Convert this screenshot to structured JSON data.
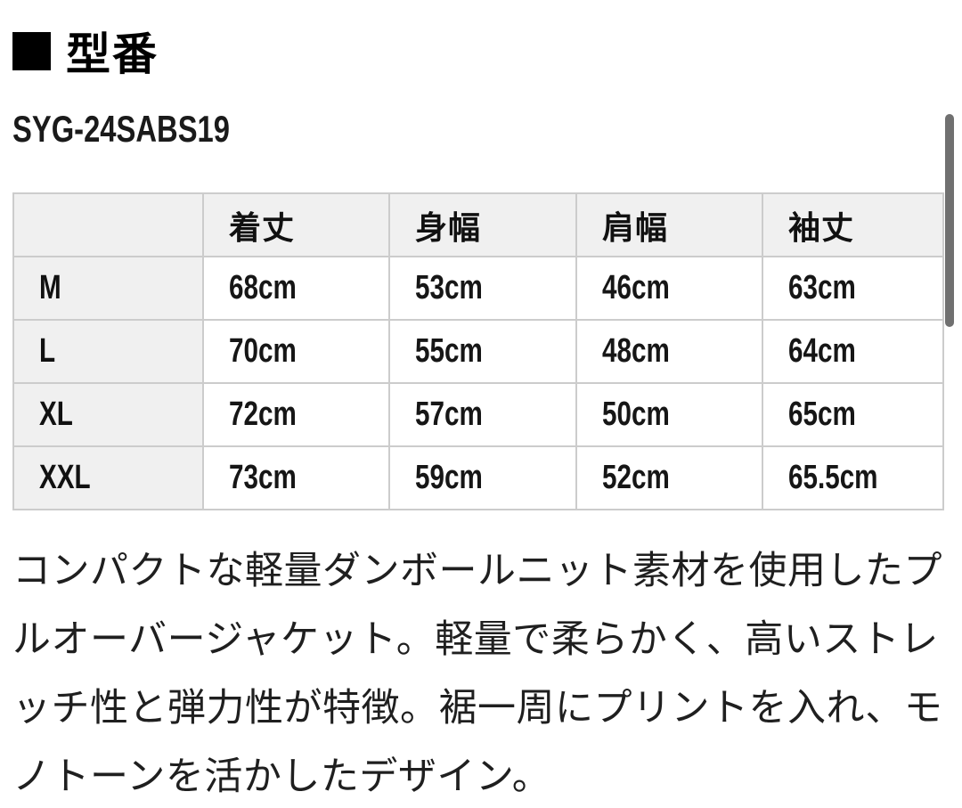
{
  "header": {
    "marker_icon": "black-square",
    "title": "型番"
  },
  "model_number": "SYG-24SABS19",
  "size_table": {
    "columns": [
      "",
      "着丈",
      "身幅",
      "肩幅",
      "袖丈"
    ],
    "rows": [
      {
        "size": "M",
        "values": [
          "68cm",
          "53cm",
          "46cm",
          "63cm"
        ]
      },
      {
        "size": "L",
        "values": [
          "70cm",
          "55cm",
          "48cm",
          "64cm"
        ]
      },
      {
        "size": "XL",
        "values": [
          "72cm",
          "57cm",
          "50cm",
          "65cm"
        ]
      },
      {
        "size": "XXL",
        "values": [
          "73cm",
          "59cm",
          "52cm",
          "65.5cm"
        ]
      }
    ],
    "colors": {
      "header_bg": "#f0f0f0",
      "row_label_bg": "#f0f0f0",
      "border": "#cccccc",
      "cell_bg": "#ffffff"
    }
  },
  "description": "コンパクトな軽量ダンボールニット素材を使用したプルオーバージャケット。軽量で柔らかく、高いストレッチ性と弾力性が特徴。裾一周にプリントを入れ、モノトーンを活かしたデザイン。",
  "scrollbar": {
    "color": "#707070"
  }
}
